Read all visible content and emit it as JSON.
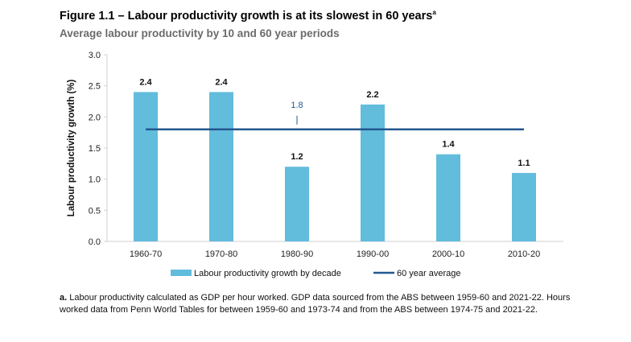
{
  "title": "Figure 1.1 – Labour productivity growth is at its slowest in 60 years",
  "title_superscript": "a",
  "subtitle": "Average labour productivity by 10 and 60 year periods",
  "chart_data": {
    "type": "bar",
    "categories": [
      "1960-70",
      "1970-80",
      "1980-90",
      "1990-00",
      "2000-10",
      "2010-20"
    ],
    "series": [
      {
        "name": "Labour productivity growth by decade",
        "type": "bar",
        "values": [
          2.4,
          2.4,
          1.2,
          2.2,
          1.4,
          1.1
        ],
        "color": "#62bcdc"
      },
      {
        "name": "60 year average",
        "type": "line",
        "values": [
          1.8,
          1.8,
          1.8,
          1.8,
          1.8,
          1.8
        ],
        "color": "#24578f",
        "label": "1.8"
      }
    ],
    "ylabel": "Labour productivity growth (%)",
    "xlabel": "",
    "ylim": [
      0,
      3.0
    ],
    "yticks": [
      "0.0",
      "0.5",
      "1.0",
      "1.5",
      "2.0",
      "2.5",
      "3.0"
    ],
    "grid": false,
    "legend": "bottom"
  },
  "footnote": {
    "marker": "a.",
    "text": "Labour productivity calculated as GDP per hour worked. GDP data sourced from the ABS between 1959-60 and 2021-22. Hours worked data from Penn World Tables for between 1959-60 and 1973-74 and from the ABS between 1974-75 and 2021-22."
  }
}
